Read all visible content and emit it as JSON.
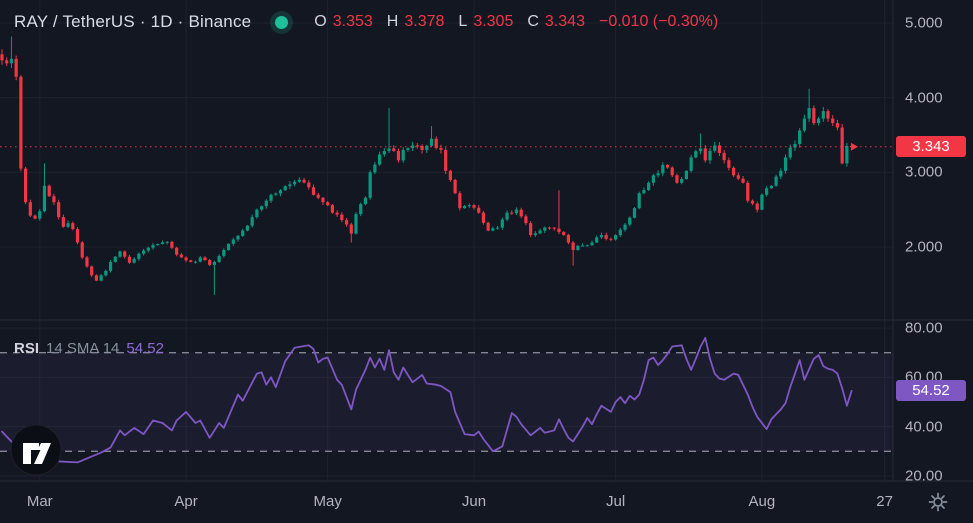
{
  "header": {
    "title": "RAY / TetherUS · 1D · Binance",
    "ohlc": {
      "o_label": "O",
      "o": "3.353",
      "h_label": "H",
      "h": "3.378",
      "l_label": "L",
      "l": "3.305",
      "c_label": "C",
      "c": "3.343",
      "change": "−0.010 (−0.30%)"
    }
  },
  "rsi": {
    "title": "RSI",
    "params": "14 SMA 14",
    "value": "54.52"
  },
  "theme": {
    "bg": "#131722",
    "grid": "#1e222d",
    "axis_text": "#b2b5be",
    "up": "#089981",
    "down": "#f23645",
    "rsi_line": "#7e57c2",
    "band_fill": "rgba(126,87,194,0.09)",
    "dashed": "#a7adb8",
    "separator": "#262b38",
    "price_tag_bg": "#f23645",
    "rsi_tag_bg": "#7e57c2",
    "status_dot": "#1fbf9c",
    "icon_gray": "#87909c",
    "logo_bg": "#0b0e14",
    "logo_glyph": "#ffffff"
  },
  "chart_data": {
    "type": "candlestick",
    "title": "RAY / TetherUS · 1D · Binance",
    "x_ticks": [
      {
        "label": "Mar",
        "day": 8
      },
      {
        "label": "Apr",
        "day": 39
      },
      {
        "label": "May",
        "day": 69
      },
      {
        "label": "Jun",
        "day": 100
      },
      {
        "label": "Jul",
        "day": 130
      },
      {
        "label": "Aug",
        "day": 161
      },
      {
        "label": "27",
        "day": 187
      }
    ],
    "panes": [
      {
        "name": "price",
        "type": "candlestick",
        "y_ticks": [
          5,
          4,
          3,
          2
        ],
        "y_tick_labels": [
          "5.000",
          "4.000",
          "3.000",
          "2.000"
        ],
        "last_price": 3.343,
        "last_price_label": "3.343",
        "ohlc_last": {
          "open": 3.353,
          "high": 3.378,
          "low": 3.305,
          "close": 3.343
        },
        "candle_count": 181,
        "first_open": 4.58,
        "close_anchors": [
          [
            0,
            4.5
          ],
          [
            1,
            4.46
          ],
          [
            2,
            4.52
          ],
          [
            3,
            4.28
          ],
          [
            4,
            3.05
          ],
          [
            5,
            2.6
          ],
          [
            6,
            2.42
          ],
          [
            7,
            2.38
          ],
          [
            8,
            2.48
          ],
          [
            9,
            2.82
          ],
          [
            10,
            2.68
          ],
          [
            11,
            2.6
          ],
          [
            12,
            2.4
          ],
          [
            13,
            2.27
          ],
          [
            14,
            2.32
          ],
          [
            15,
            2.24
          ],
          [
            16,
            2.06
          ],
          [
            17,
            1.86
          ],
          [
            18,
            1.74
          ],
          [
            19,
            1.62
          ],
          [
            20,
            1.55
          ],
          [
            21,
            1.62
          ],
          [
            22,
            1.68
          ],
          [
            23,
            1.8
          ],
          [
            24,
            1.87
          ],
          [
            25,
            1.94
          ],
          [
            26,
            1.87
          ],
          [
            27,
            1.79
          ],
          [
            28,
            1.84
          ],
          [
            29,
            1.91
          ],
          [
            31,
            1.99
          ],
          [
            33,
            2.04
          ],
          [
            35,
            2.07
          ],
          [
            36,
            1.99
          ],
          [
            38,
            1.86
          ],
          [
            40,
            1.8
          ],
          [
            42,
            1.86
          ],
          [
            44,
            1.76
          ],
          [
            45,
            1.8
          ],
          [
            46,
            1.88
          ],
          [
            47,
            1.96
          ],
          [
            49,
            2.1
          ],
          [
            51,
            2.22
          ],
          [
            53,
            2.4
          ],
          [
            54,
            2.5
          ],
          [
            56,
            2.62
          ],
          [
            57,
            2.7
          ],
          [
            59,
            2.76
          ],
          [
            61,
            2.84
          ],
          [
            63,
            2.9
          ],
          [
            65,
            2.8
          ],
          [
            67,
            2.66
          ],
          [
            68,
            2.6
          ],
          [
            70,
            2.46
          ],
          [
            72,
            2.36
          ],
          [
            74,
            2.18
          ],
          [
            75,
            2.44
          ],
          [
            77,
            2.66
          ],
          [
            78,
            3.0
          ],
          [
            80,
            3.24
          ],
          [
            82,
            3.32
          ],
          [
            84,
            3.16
          ],
          [
            85,
            3.3
          ],
          [
            87,
            3.36
          ],
          [
            89,
            3.3
          ],
          [
            91,
            3.45
          ],
          [
            93,
            3.3
          ],
          [
            94,
            3.02
          ],
          [
            96,
            2.72
          ],
          [
            97,
            2.52
          ],
          [
            99,
            2.56
          ],
          [
            101,
            2.46
          ],
          [
            103,
            2.22
          ],
          [
            105,
            2.26
          ],
          [
            107,
            2.46
          ],
          [
            109,
            2.5
          ],
          [
            111,
            2.32
          ],
          [
            112,
            2.16
          ],
          [
            114,
            2.22
          ],
          [
            116,
            2.26
          ],
          [
            118,
            2.2
          ],
          [
            120,
            2.06
          ],
          [
            121,
            1.96
          ],
          [
            123,
            2.02
          ],
          [
            125,
            2.06
          ],
          [
            127,
            2.16
          ],
          [
            129,
            2.1
          ],
          [
            130,
            2.16
          ],
          [
            132,
            2.3
          ],
          [
            134,
            2.52
          ],
          [
            135,
            2.72
          ],
          [
            137,
            2.86
          ],
          [
            138,
            2.96
          ],
          [
            140,
            3.1
          ],
          [
            142,
            2.96
          ],
          [
            143,
            2.86
          ],
          [
            145,
            3.02
          ],
          [
            146,
            3.2
          ],
          [
            148,
            3.32
          ],
          [
            149,
            3.16
          ],
          [
            151,
            3.36
          ],
          [
            152,
            3.26
          ],
          [
            154,
            3.06
          ],
          [
            155,
            2.96
          ],
          [
            157,
            2.86
          ],
          [
            158,
            2.62
          ],
          [
            160,
            2.5
          ],
          [
            161,
            2.7
          ],
          [
            163,
            2.82
          ],
          [
            165,
            3.02
          ],
          [
            166,
            3.2
          ],
          [
            168,
            3.38
          ],
          [
            169,
            3.56
          ],
          [
            170,
            3.72
          ],
          [
            171,
            3.86
          ],
          [
            172,
            3.66
          ],
          [
            173,
            3.72
          ],
          [
            174,
            3.82
          ],
          [
            175,
            3.72
          ],
          [
            176,
            3.66
          ],
          [
            177,
            3.6
          ],
          [
            178,
            3.12
          ],
          [
            179,
            3.353
          ],
          [
            180,
            3.343
          ]
        ],
        "wick_overrides": [
          {
            "day": 2,
            "high": 4.82
          },
          {
            "day": 9,
            "high": 3.12
          },
          {
            "day": 45,
            "low": 1.36
          },
          {
            "day": 74,
            "low": 2.06
          },
          {
            "day": 82,
            "high": 3.86
          },
          {
            "day": 91,
            "high": 3.62
          },
          {
            "day": 118,
            "high": 2.76
          },
          {
            "day": 121,
            "low": 1.75
          },
          {
            "day": 148,
            "high": 3.52
          },
          {
            "day": 171,
            "high": 4.12
          },
          {
            "day": 180,
            "high": 3.378,
            "low": 3.305
          }
        ]
      },
      {
        "name": "rsi",
        "type": "line",
        "label": "RSI 14 SMA 14",
        "y_ticks": [
          80,
          60,
          40,
          20
        ],
        "y_tick_labels": [
          "80.00",
          "60.00",
          "40.00",
          "20.00"
        ],
        "levels": {
          "overbought": 70,
          "oversold": 30
        },
        "last_value": 54.52,
        "last_value_label": "54.52",
        "points": [
          [
            0,
            38
          ],
          [
            2,
            34
          ],
          [
            4,
            30
          ],
          [
            8,
            27.5
          ],
          [
            11,
            26
          ],
          [
            16,
            25.5
          ],
          [
            21,
            29.5
          ],
          [
            23,
            31.5
          ],
          [
            25,
            38.5
          ],
          [
            26,
            36.5
          ],
          [
            28,
            39.5
          ],
          [
            30,
            37
          ],
          [
            32,
            42.5
          ],
          [
            34,
            41.5
          ],
          [
            36,
            38.5
          ],
          [
            37,
            42.5
          ],
          [
            39,
            46
          ],
          [
            41,
            41.5
          ],
          [
            42,
            42.5
          ],
          [
            44,
            35.5
          ],
          [
            46,
            41.5
          ],
          [
            47,
            39.5
          ],
          [
            50,
            53
          ],
          [
            51,
            50.5
          ],
          [
            54,
            61.5
          ],
          [
            55,
            62
          ],
          [
            56,
            57
          ],
          [
            57,
            60
          ],
          [
            58,
            56
          ],
          [
            60,
            66.5
          ],
          [
            62,
            72
          ],
          [
            65,
            73
          ],
          [
            66,
            71.5
          ],
          [
            67,
            66
          ],
          [
            68,
            67.5
          ],
          [
            69,
            68
          ],
          [
            71,
            59
          ],
          [
            72,
            57
          ],
          [
            74,
            47
          ],
          [
            75,
            55
          ],
          [
            77,
            63
          ],
          [
            78,
            68
          ],
          [
            79,
            64
          ],
          [
            80,
            67.5
          ],
          [
            81,
            63
          ],
          [
            82,
            71
          ],
          [
            83,
            62
          ],
          [
            84,
            59
          ],
          [
            85,
            64
          ],
          [
            87,
            58
          ],
          [
            89,
            61
          ],
          [
            90,
            57.5
          ],
          [
            92,
            57
          ],
          [
            93,
            56.5
          ],
          [
            95,
            54
          ],
          [
            96,
            46
          ],
          [
            98,
            37
          ],
          [
            100,
            36.5
          ],
          [
            101,
            38
          ],
          [
            102,
            35
          ],
          [
            104,
            30
          ],
          [
            106,
            32
          ],
          [
            108,
            45.5
          ],
          [
            109,
            44
          ],
          [
            110,
            41
          ],
          [
            112,
            36.5
          ],
          [
            113,
            38
          ],
          [
            114,
            39.5
          ],
          [
            115,
            37.5
          ],
          [
            117,
            38.5
          ],
          [
            118,
            43
          ],
          [
            119,
            39
          ],
          [
            120,
            35.5
          ],
          [
            121,
            34
          ],
          [
            123,
            40
          ],
          [
            124,
            43.5
          ],
          [
            125,
            41
          ],
          [
            126,
            45
          ],
          [
            127,
            48.5
          ],
          [
            129,
            46
          ],
          [
            130,
            50
          ],
          [
            131,
            52
          ],
          [
            132,
            49.5
          ],
          [
            133,
            52.5
          ],
          [
            134,
            51
          ],
          [
            135,
            53
          ],
          [
            136,
            59
          ],
          [
            137,
            67
          ],
          [
            138,
            68
          ],
          [
            139,
            65
          ],
          [
            140,
            67
          ],
          [
            141,
            69.5
          ],
          [
            142,
            72.5
          ],
          [
            144,
            73
          ],
          [
            145,
            67.5
          ],
          [
            146,
            63
          ],
          [
            147,
            67.5
          ],
          [
            148,
            72.5
          ],
          [
            149,
            76
          ],
          [
            150,
            67.5
          ],
          [
            151,
            61.5
          ],
          [
            152,
            59.5
          ],
          [
            153,
            59
          ],
          [
            155,
            61.5
          ],
          [
            156,
            61
          ],
          [
            157,
            57
          ],
          [
            158,
            53
          ],
          [
            159,
            48
          ],
          [
            160,
            44
          ],
          [
            162,
            39
          ],
          [
            163,
            43
          ],
          [
            164,
            45
          ],
          [
            165,
            47
          ],
          [
            166,
            49.5
          ],
          [
            167,
            56
          ],
          [
            168,
            61.5
          ],
          [
            169,
            67
          ],
          [
            170,
            59
          ],
          [
            172,
            67.5
          ],
          [
            173,
            69
          ],
          [
            174,
            64.5
          ],
          [
            175,
            63.5
          ],
          [
            176,
            63
          ],
          [
            177,
            61.5
          ],
          [
            178,
            55.5
          ],
          [
            179,
            48.5
          ],
          [
            180,
            54.52
          ]
        ]
      }
    ]
  }
}
